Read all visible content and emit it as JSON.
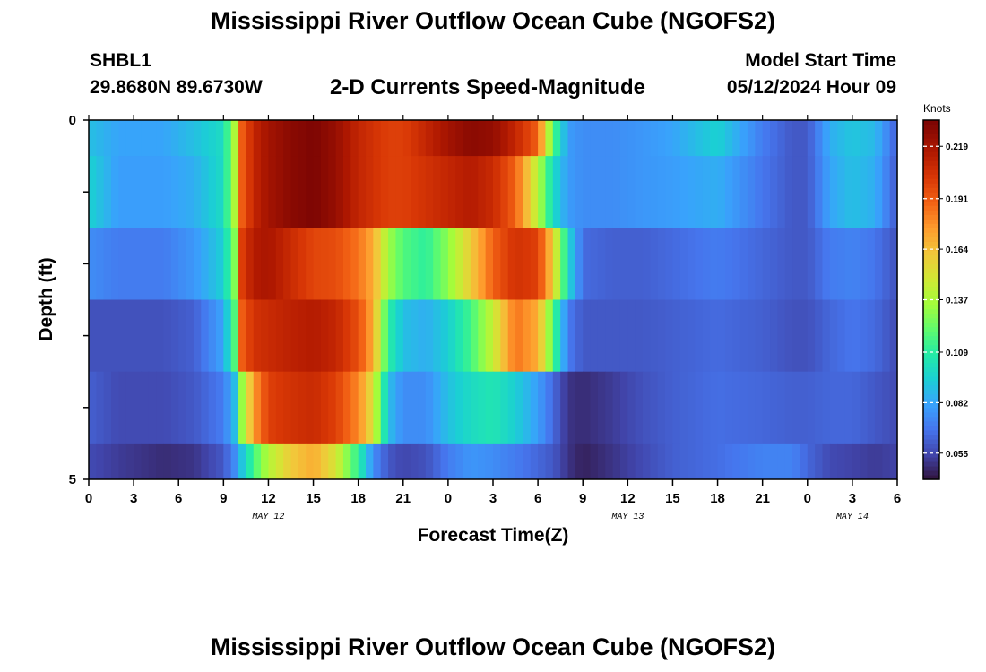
{
  "header": {
    "title": "Mississippi River Outflow Ocean Cube (NGOFS2)",
    "station": "SHBL1",
    "coords": "29.8680N  89.6730W",
    "subtitle": "2-D Currents Speed-Magnitude",
    "model_start_label": "Model Start Time",
    "model_start_value": "05/12/2024 Hour 09"
  },
  "footer": {
    "title": "Mississippi River Outflow Ocean Cube (NGOFS2)"
  },
  "chart_data": {
    "type": "heatmap",
    "xlabel": "Forecast Time(Z)",
    "ylabel": "Depth (ft)",
    "x_range_hours": [
      0,
      54
    ],
    "y_range_ft": [
      0,
      5
    ],
    "x_tick_labels": [
      "0",
      "3",
      "6",
      "9",
      "12",
      "15",
      "18",
      "21",
      "0",
      "3",
      "6",
      "9",
      "12",
      "15",
      "18",
      "21",
      "0",
      "3",
      "6"
    ],
    "y_tick_labels": [
      "0",
      "5"
    ],
    "date_labels": [
      {
        "label": "MAY 12",
        "hour": 12
      },
      {
        "label": "MAY 13",
        "hour": 36
      },
      {
        "label": "MAY 14",
        "hour": 51
      }
    ],
    "colorbar": {
      "title": "Knots",
      "min": 0.041,
      "max": 0.233,
      "tick_values": [
        0.055,
        0.082,
        0.109,
        0.137,
        0.164,
        0.191,
        0.219
      ],
      "tick_labels": [
        "0.055",
        "0.082",
        "0.109",
        "0.137",
        "0.164",
        "0.191",
        "0.219"
      ]
    },
    "layers_ft": [
      0.5,
      1.5,
      2.5,
      3.5,
      4.5,
      5
    ],
    "layer_top_ft": [
      0,
      0.5,
      1.5,
      2.5,
      3.5,
      4.5
    ],
    "layer_bottom_ft": [
      0.5,
      1.5,
      2.5,
      3.5,
      4.5,
      5
    ],
    "key_hours": [
      0,
      2,
      5,
      7,
      9,
      9.8,
      10.2,
      11,
      12,
      13.5,
      15,
      16.5,
      18,
      19,
      20,
      21,
      22.5,
      24,
      25.5,
      27,
      28.5,
      30,
      31,
      32,
      33,
      35,
      37,
      39,
      42,
      45,
      47,
      48,
      49.5,
      51,
      52.5,
      54
    ],
    "speed_knots": [
      [
        0.09,
        0.082,
        0.082,
        0.09,
        0.1,
        0.14,
        0.19,
        0.21,
        0.22,
        0.228,
        0.232,
        0.224,
        0.21,
        0.205,
        0.2,
        0.2,
        0.21,
        0.22,
        0.228,
        0.225,
        0.21,
        0.19,
        0.12,
        0.08,
        0.075,
        0.075,
        0.078,
        0.082,
        0.096,
        0.07,
        0.06,
        0.06,
        0.085,
        0.092,
        0.088,
        0.062
      ],
      [
        0.096,
        0.08,
        0.08,
        0.085,
        0.1,
        0.14,
        0.19,
        0.21,
        0.22,
        0.228,
        0.232,
        0.224,
        0.21,
        0.205,
        0.2,
        0.2,
        0.205,
        0.21,
        0.215,
        0.208,
        0.19,
        0.14,
        0.1,
        0.08,
        0.075,
        0.075,
        0.078,
        0.08,
        0.085,
        0.068,
        0.06,
        0.06,
        0.082,
        0.09,
        0.085,
        0.06
      ],
      [
        0.075,
        0.07,
        0.07,
        0.078,
        0.095,
        0.13,
        0.2,
        0.215,
        0.218,
        0.208,
        0.198,
        0.196,
        0.185,
        0.17,
        0.135,
        0.118,
        0.11,
        0.13,
        0.16,
        0.19,
        0.205,
        0.2,
        0.16,
        0.1,
        0.065,
        0.062,
        0.062,
        0.065,
        0.07,
        0.064,
        0.06,
        0.06,
        0.07,
        0.072,
        0.068,
        0.058
      ],
      [
        0.058,
        0.058,
        0.058,
        0.062,
        0.082,
        0.12,
        0.19,
        0.205,
        0.208,
        0.212,
        0.215,
        0.21,
        0.195,
        0.17,
        0.11,
        0.09,
        0.085,
        0.095,
        0.115,
        0.145,
        0.185,
        0.17,
        0.12,
        0.07,
        0.06,
        0.06,
        0.06,
        0.062,
        0.065,
        0.062,
        0.058,
        0.058,
        0.064,
        0.068,
        0.065,
        0.056
      ],
      [
        0.062,
        0.056,
        0.056,
        0.06,
        0.07,
        0.09,
        0.13,
        0.175,
        0.2,
        0.205,
        0.208,
        0.2,
        0.18,
        0.15,
        0.09,
        0.075,
        0.075,
        0.09,
        0.1,
        0.105,
        0.095,
        0.08,
        0.065,
        0.05,
        0.048,
        0.052,
        0.058,
        0.062,
        0.066,
        0.064,
        0.062,
        0.062,
        0.064,
        0.064,
        0.06,
        0.056
      ],
      [
        0.056,
        0.052,
        0.048,
        0.05,
        0.06,
        0.075,
        0.09,
        0.115,
        0.14,
        0.16,
        0.17,
        0.15,
        0.11,
        0.075,
        0.06,
        0.055,
        0.058,
        0.07,
        0.078,
        0.075,
        0.07,
        0.064,
        0.06,
        0.05,
        0.045,
        0.05,
        0.056,
        0.062,
        0.066,
        0.072,
        0.072,
        0.064,
        0.056,
        0.054,
        0.052,
        0.054
      ]
    ]
  }
}
